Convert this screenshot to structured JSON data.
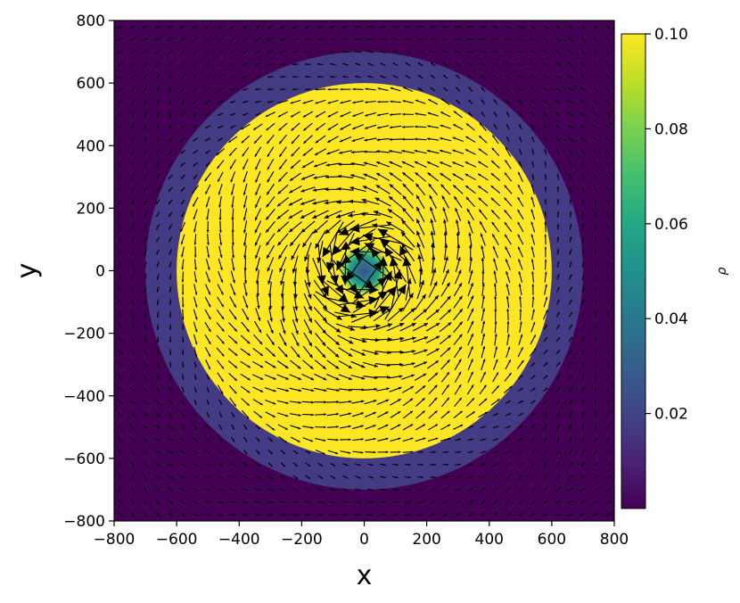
{
  "chart_data": {
    "type": "heatmap",
    "title": "",
    "xlabel": "x",
    "ylabel": "y",
    "xlim": [
      -800,
      800
    ],
    "ylim": [
      -800,
      800
    ],
    "xticks": [
      "−800",
      "−600",
      "−400",
      "−200",
      "0",
      "200",
      "400",
      "600",
      "800"
    ],
    "xtick_values": [
      -800,
      -600,
      -400,
      -200,
      0,
      200,
      400,
      600,
      800
    ],
    "yticks": [
      "800",
      "600",
      "400",
      "200",
      "0",
      "−200",
      "−400",
      "−600",
      "−800"
    ],
    "ytick_values": [
      800,
      600,
      400,
      200,
      0,
      -200,
      -400,
      -600,
      -800
    ],
    "grid": false,
    "field": "density ρ with velocity vectors (quiver)",
    "regions": [
      {
        "shape": "background",
        "value": 0.0005
      },
      {
        "shape": "ring",
        "inner_radius": 600,
        "outer_radius": 700,
        "value": 0.01
      },
      {
        "shape": "disk",
        "radius": 600,
        "value": 0.1
      },
      {
        "shape": "core",
        "radius": 80,
        "center_value": 0.03
      }
    ],
    "velocity_field": {
      "type": "rotating",
      "core_radius": 150
    },
    "colorbar": {
      "label": "ρ",
      "colormap": "viridis",
      "range": [
        0.0,
        0.1
      ],
      "ticks": [
        "0.10",
        "0.08",
        "0.06",
        "0.04",
        "0.02"
      ],
      "tick_values": [
        0.1,
        0.08,
        0.06,
        0.04,
        0.02
      ]
    },
    "colors": {
      "background": "#440154",
      "ring": "#433b83",
      "disk": "#fde725",
      "arrow": "#000000"
    }
  }
}
